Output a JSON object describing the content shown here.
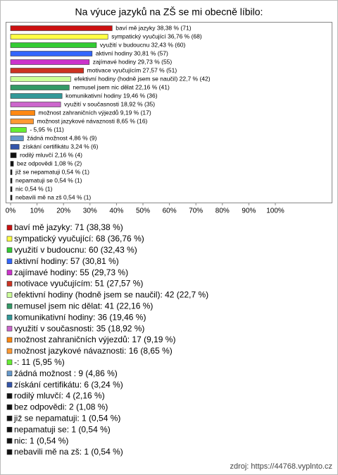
{
  "chart_data": {
    "type": "bar",
    "orientation": "horizontal",
    "title": "Na výuce jazyků na ZŠ se mi obecně líbilo:",
    "categories": [
      "baví mě jazyky",
      "sympatický vyučující",
      "využití v budoucnu",
      "aktivní hodiny",
      "zajímavé hodiny",
      "motivace vyučujícím",
      "efektivní hodiny (hodně jsem se naučil)",
      "nemusel jsem nic dělat",
      "komunikativní hodiny",
      "využití v současnosti",
      "možnost zahraničních výjezdů",
      "možnost jazykové návaznosti",
      "-",
      "žádná možnost",
      "získání certifikátu",
      "rodilý mluvčí",
      "bez odpovědi",
      "již se nepamatuji",
      "nepamatuji se",
      "nic",
      "nebavili mě na zš"
    ],
    "values": [
      38.38,
      36.76,
      32.43,
      30.81,
      29.73,
      27.57,
      22.7,
      22.16,
      19.46,
      18.92,
      9.19,
      8.65,
      5.95,
      4.86,
      3.24,
      2.16,
      1.08,
      0.54,
      0.54,
      0.54,
      0.54
    ],
    "value_labels": [
      "baví mě jazyky 38,38 % (71)",
      "sympatický vyučující 36,76 % (68)",
      "využití v budoucnu 32,43 % (60)",
      "aktivní hodiny 30,81 % (57)",
      "zajímavé hodiny 29,73 % (55)",
      "motivace vyučujícím 27,57 % (51)",
      "efektivní hodiny (hodně jsem se naučil) 22,7 % (42)",
      "nemusel jsem nic dělat 22,16 % (41)",
      "komunikativní hodiny 19,46 % (36)",
      "využití v současnosti 18,92 % (35)",
      "možnost zahraničních výjezdů 9,19 % (17)",
      "možnost jazykové návaznosti 8,65 % (16)",
      "- 5,95 % (11)",
      "žádná možnost 4,86 % (9)",
      "získání certifikátu 3,24 % (6)",
      "rodilý mluvčí 2,16 % (4)",
      "bez odpovědi 1,08 % (2)",
      "již se nepamatuji 0,54 % (1)",
      "nepamatuji se 0,54 % (1)",
      "nic 0,54 % (1)",
      "nebavili mě na zš 0,54 % (1)"
    ],
    "legend_labels": [
      "baví mě jazyky: 71 (38,38 %)",
      "sympatický vyučující: 68 (36,76 %)",
      "využití v budoucnu: 60 (32,43 %)",
      "aktivní hodiny: 57 (30,81 %)",
      "zajímavé hodiny: 55 (29,73 %)",
      "motivace vyučujícím: 51 (27,57 %)",
      "efektivní hodiny (hodně jsem se naučil): 42 (22,7 %)",
      "nemusel jsem nic dělat: 41 (22,16 %)",
      "komunikativní hodiny: 36 (19,46 %)",
      "využití v současnosti: 35 (18,92 %)",
      "možnost zahraničních výjezdů: 17 (9,19 %)",
      "možnost jazykové návaznosti: 16 (8,65 %)",
      "-: 11 (5,95 %)",
      "žádná možnost : 9 (4,86 %)",
      "získání certifikátu: 6 (3,24 %)",
      "rodilý mluvčí: 4 (2,16 %)",
      "bez odpovědi: 2 (1,08 %)",
      "již se nepamatuji: 1 (0,54 %)",
      "nepamatuji se: 1 (0,54 %)",
      "nic: 1 (0,54 %)",
      "nebavili mě na zš: 1 (0,54 %)"
    ],
    "colors": [
      "#cc1111",
      "#ffff44",
      "#33cc33",
      "#3366ff",
      "#cc33cc",
      "#cc3322",
      "#ccff99",
      "#339966",
      "#339999",
      "#cc66cc",
      "#ff8811",
      "#ff9933",
      "#66ee33",
      "#6699cc",
      "#3355aa",
      "#111111",
      "#111111",
      "#111111",
      "#111111",
      "#111111",
      "#111111"
    ],
    "xlim": [
      0,
      100
    ],
    "xticks": [
      {
        "value": 0,
        "label": "0%"
      },
      {
        "value": 10,
        "label": "10%"
      },
      {
        "value": 20,
        "label": "20%"
      },
      {
        "value": 30,
        "label": "30%"
      },
      {
        "value": 40,
        "label": "40%"
      },
      {
        "value": 50,
        "label": "50%"
      },
      {
        "value": 60,
        "label": "60%"
      },
      {
        "value": 70,
        "label": "70%"
      },
      {
        "value": 80,
        "label": "80%"
      },
      {
        "value": 90,
        "label": "90%"
      },
      {
        "value": 100,
        "label": "100%"
      }
    ],
    "source": "zdroj: https://44768.vyplnto.cz"
  }
}
